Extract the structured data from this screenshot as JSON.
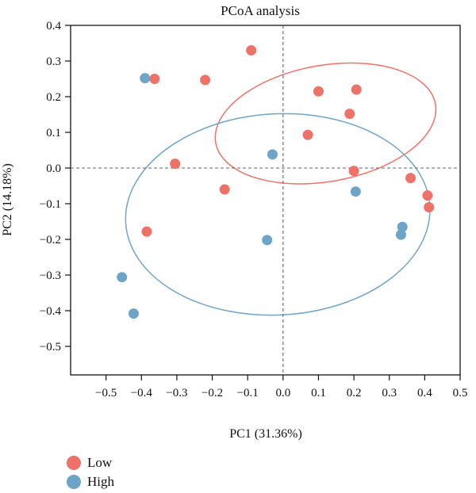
{
  "chart_data": {
    "type": "scatter",
    "title": "PCoA analysis",
    "xlabel": "PC1 (31.36%)",
    "ylabel": "PC2 (14.18%)",
    "xlim": [
      -0.6,
      0.5
    ],
    "ylim": [
      -0.58,
      0.4
    ],
    "xticks": [
      -0.5,
      -0.4,
      -0.3,
      -0.2,
      -0.1,
      0.0,
      0.1,
      0.2,
      0.3,
      0.4,
      0.5
    ],
    "xtick_labels": [
      "−0.5",
      "−0.4",
      "−0.3",
      "−0.2",
      "−0.1",
      "0.0",
      "0.1",
      "0.2",
      "0.3",
      "0.4",
      "0.5"
    ],
    "yticks": [
      0.4,
      0.3,
      0.2,
      0.1,
      0.0,
      -0.1,
      -0.2,
      -0.3,
      -0.4,
      -0.5
    ],
    "ytick_labels": [
      "0.4",
      "0.3",
      "0.2",
      "0.1",
      "0.0",
      "−0.1",
      "−0.2",
      "−0.3",
      "−0.4",
      "−0.5"
    ],
    "grid": false,
    "reference_lines": {
      "x": 0.0,
      "y": 0.0,
      "style": "dashed"
    },
    "legend": {
      "placement": "bottom-left"
    },
    "series": [
      {
        "name": "Low",
        "color": "#ee7267",
        "points": [
          [
            -0.363,
            0.25
          ],
          [
            -0.22,
            0.247
          ],
          [
            -0.09,
            0.33
          ],
          [
            0.1,
            0.215
          ],
          [
            0.207,
            0.22
          ],
          [
            0.188,
            0.152
          ],
          [
            0.07,
            0.093
          ],
          [
            -0.305,
            0.012
          ],
          [
            0.2,
            -0.008
          ],
          [
            0.36,
            -0.028
          ],
          [
            -0.165,
            -0.06
          ],
          [
            0.408,
            -0.077
          ],
          [
            0.412,
            -0.11
          ],
          [
            -0.385,
            -0.178
          ]
        ],
        "ellipse": {
          "cx": 0.12,
          "cy": 0.125,
          "rx": 0.315,
          "ry": 0.163,
          "angle_deg": -10
        }
      },
      {
        "name": "High",
        "color": "#6fa4c9",
        "points": [
          [
            -0.39,
            0.252
          ],
          [
            -0.03,
            0.038
          ],
          [
            0.205,
            -0.066
          ],
          [
            0.337,
            -0.165
          ],
          [
            0.333,
            -0.187
          ],
          [
            -0.045,
            -0.202
          ],
          [
            -0.455,
            -0.306
          ],
          [
            -0.422,
            -0.408
          ]
        ],
        "ellipse": {
          "cx": -0.015,
          "cy": -0.13,
          "rx": 0.43,
          "ry": 0.282,
          "angle_deg": -3
        }
      }
    ]
  }
}
